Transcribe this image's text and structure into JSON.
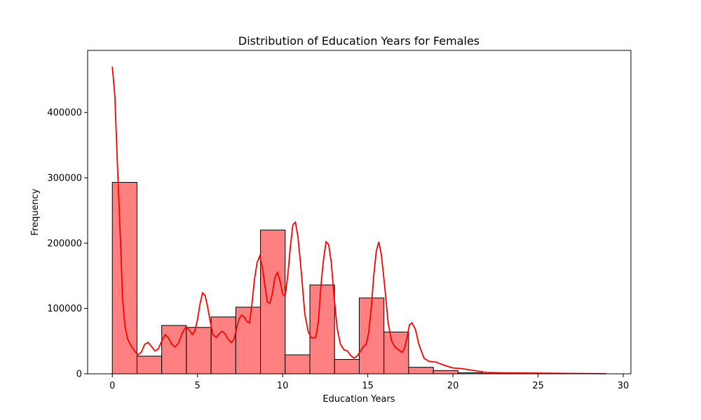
{
  "chart_data": {
    "type": "bar",
    "title": "Distribution of Education Years for Females",
    "xlabel": "Education Years",
    "ylabel": "Frequency",
    "xlim": [
      -1.45,
      30.45
    ],
    "ylim": [
      0,
      495000
    ],
    "x_ticks": [
      0,
      5,
      10,
      15,
      20,
      25,
      30
    ],
    "y_ticks": [
      0,
      100000,
      200000,
      300000,
      400000
    ],
    "bar_color": "#ff8080",
    "bar_edge_color": "#000000",
    "kde_color": "#ff0000",
    "bin_width": 1.45,
    "bins": [
      {
        "start": 0.0,
        "value": 293000
      },
      {
        "start": 1.45,
        "value": 27000
      },
      {
        "start": 2.9,
        "value": 74000
      },
      {
        "start": 4.35,
        "value": 71000
      },
      {
        "start": 5.8,
        "value": 87000
      },
      {
        "start": 7.25,
        "value": 102000
      },
      {
        "start": 8.7,
        "value": 220000
      },
      {
        "start": 10.15,
        "value": 29000
      },
      {
        "start": 11.6,
        "value": 136000
      },
      {
        "start": 13.05,
        "value": 22000
      },
      {
        "start": 14.5,
        "value": 116000
      },
      {
        "start": 15.95,
        "value": 64000
      },
      {
        "start": 17.4,
        "value": 10000
      },
      {
        "start": 18.85,
        "value": 5000
      },
      {
        "start": 20.3,
        "value": 1500
      },
      {
        "start": 21.75,
        "value": 500
      },
      {
        "start": 23.2,
        "value": 200
      },
      {
        "start": 24.65,
        "value": 150
      },
      {
        "start": 26.1,
        "value": 100
      },
      {
        "start": 27.55,
        "value": 100
      }
    ],
    "kde": {
      "x": [
        0,
        0.15,
        0.3,
        0.5,
        0.6,
        0.75,
        0.9,
        1.1,
        1.3,
        1.5,
        1.7,
        1.9,
        2.1,
        2.3,
        2.5,
        2.7,
        2.9,
        3.1,
        3.3,
        3.5,
        3.7,
        3.9,
        4.1,
        4.3,
        4.5,
        4.7,
        4.85,
        5.0,
        5.15,
        5.3,
        5.45,
        5.6,
        5.75,
        5.9,
        6.1,
        6.3,
        6.45,
        6.6,
        6.8,
        7.0,
        7.15,
        7.3,
        7.45,
        7.6,
        7.75,
        7.9,
        8.05,
        8.2,
        8.35,
        8.5,
        8.65,
        8.8,
        8.95,
        9.1,
        9.25,
        9.4,
        9.55,
        9.7,
        9.85,
        10.0,
        10.15,
        10.3,
        10.45,
        10.6,
        10.75,
        10.9,
        11.1,
        11.3,
        11.5,
        11.65,
        11.8,
        11.95,
        12.1,
        12.25,
        12.4,
        12.55,
        12.7,
        12.85,
        13.0,
        13.2,
        13.4,
        13.6,
        13.8,
        14.0,
        14.2,
        14.4,
        14.6,
        14.75,
        14.9,
        15.05,
        15.2,
        15.35,
        15.5,
        15.65,
        15.8,
        16.0,
        16.2,
        16.4,
        16.6,
        16.8,
        17.0,
        17.15,
        17.3,
        17.45,
        17.6,
        17.8,
        18.0,
        18.3,
        18.6,
        19.0,
        19.5,
        20.0,
        20.5,
        21.0,
        22.0,
        23.0,
        25.0,
        27.0,
        29.0
      ],
      "y": [
        470000,
        425000,
        320000,
        190000,
        115000,
        72000,
        53000,
        43000,
        35000,
        29000,
        33000,
        45000,
        48000,
        42000,
        35000,
        38000,
        50000,
        60000,
        55000,
        45000,
        41000,
        48000,
        62000,
        71000,
        68000,
        60000,
        66000,
        83000,
        107000,
        124000,
        120000,
        102000,
        80000,
        60000,
        56000,
        62000,
        65000,
        62000,
        53000,
        48000,
        53000,
        70000,
        85000,
        90000,
        87000,
        80000,
        78000,
        107000,
        145000,
        170000,
        180000,
        165000,
        137000,
        110000,
        108000,
        123000,
        148000,
        155000,
        142000,
        122000,
        119000,
        150000,
        193000,
        228000,
        232000,
        210000,
        155000,
        92000,
        65000,
        56000,
        55000,
        56000,
        80000,
        135000,
        175000,
        202000,
        198000,
        172000,
        125000,
        70000,
        45000,
        37000,
        35000,
        28000,
        24000,
        28000,
        36000,
        42000,
        45000,
        62000,
        100000,
        150000,
        188000,
        202000,
        182000,
        132000,
        77000,
        50000,
        41000,
        37000,
        33000,
        38000,
        55000,
        75000,
        78000,
        68000,
        45000,
        24000,
        19000,
        18000,
        13000,
        9000,
        8000,
        6000,
        2000,
        1500,
        1000,
        500,
        300
      ]
    }
  }
}
